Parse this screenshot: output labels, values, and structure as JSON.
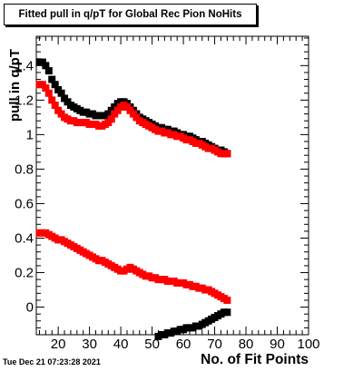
{
  "header": {
    "title": "Fitted pull in q/pT for Global Rec Pion NoHits",
    "timestamp": "Tue Dec 21 07:23:28 2021"
  },
  "chart_data": {
    "type": "scatter",
    "title": "Fitted pull in q/pT for Global Rec Pion NoHits",
    "xlabel": "No. of Fit Points",
    "ylabel": "pull in q/pT",
    "xlim": [
      13,
      100
    ],
    "ylim": [
      -0.16,
      1.57
    ],
    "x_ticks": [
      20,
      30,
      40,
      50,
      60,
      70,
      80,
      90,
      100
    ],
    "x_tick_labels": [
      "20",
      "30",
      "40",
      "50",
      "60",
      "70",
      "80",
      "90",
      "100"
    ],
    "y_ticks": [
      0,
      0.2,
      0.4,
      0.6,
      0.8,
      1.0,
      1.2,
      1.4
    ],
    "y_tick_labels": [
      "0",
      "0.2",
      "0.4",
      "0.6",
      "0.8",
      "1",
      "1.2",
      "1.4"
    ],
    "grid": false,
    "series": [
      {
        "color": "#000000",
        "marker": "square",
        "x": [
          14,
          15,
          16,
          17,
          18,
          19,
          20,
          21,
          22,
          23,
          24,
          25,
          26,
          27,
          28,
          29,
          30,
          31,
          32,
          33,
          34,
          35,
          36,
          37,
          38,
          39,
          40,
          41,
          42,
          43,
          44,
          45,
          46,
          47,
          48,
          49,
          50,
          51,
          52,
          53,
          54,
          55,
          56,
          57,
          58,
          59,
          60,
          61,
          62,
          63,
          64,
          65,
          66,
          67,
          68,
          69,
          70,
          71,
          72,
          73,
          74
        ],
        "y": [
          1.42,
          1.42,
          1.4,
          1.37,
          1.32,
          1.29,
          1.26,
          1.24,
          1.21,
          1.19,
          1.17,
          1.16,
          1.15,
          1.14,
          1.13,
          1.13,
          1.12,
          1.12,
          1.11,
          1.11,
          1.11,
          1.11,
          1.12,
          1.14,
          1.16,
          1.18,
          1.19,
          1.19,
          1.18,
          1.16,
          1.14,
          1.12,
          1.1,
          1.09,
          1.08,
          1.07,
          1.06,
          1.05,
          1.04,
          1.04,
          1.03,
          1.03,
          1.02,
          1.02,
          1.01,
          1.0,
          1.0,
          0.99,
          0.99,
          0.98,
          0.97,
          0.96,
          0.96,
          0.95,
          0.94,
          0.93,
          0.92,
          0.91,
          0.91,
          0.9,
          0.89
        ]
      },
      {
        "color": "#ff0000",
        "marker": "square",
        "x": [
          14,
          15,
          16,
          17,
          18,
          19,
          20,
          21,
          22,
          23,
          24,
          25,
          26,
          27,
          28,
          29,
          30,
          31,
          32,
          33,
          34,
          35,
          36,
          37,
          38,
          39,
          40,
          41,
          42,
          43,
          44,
          45,
          46,
          47,
          48,
          49,
          50,
          51,
          52,
          53,
          54,
          55,
          56,
          57,
          58,
          59,
          60,
          61,
          62,
          63,
          64,
          65,
          66,
          67,
          68,
          69,
          70,
          71,
          72,
          73,
          74
        ],
        "y": [
          1.29,
          1.29,
          1.27,
          1.24,
          1.2,
          1.17,
          1.14,
          1.12,
          1.1,
          1.09,
          1.08,
          1.08,
          1.07,
          1.07,
          1.07,
          1.07,
          1.06,
          1.06,
          1.06,
          1.05,
          1.05,
          1.06,
          1.07,
          1.09,
          1.12,
          1.14,
          1.16,
          1.17,
          1.16,
          1.14,
          1.12,
          1.1,
          1.08,
          1.07,
          1.06,
          1.05,
          1.04,
          1.03,
          1.02,
          1.02,
          1.01,
          1.01,
          1.0,
          1.0,
          0.99,
          0.99,
          0.98,
          0.97,
          0.97,
          0.96,
          0.95,
          0.95,
          0.94,
          0.93,
          0.92,
          0.92,
          0.91,
          0.9,
          0.89,
          0.89,
          0.89
        ]
      },
      {
        "color": "#ff0000",
        "marker": "square",
        "x": [
          14,
          15,
          16,
          17,
          18,
          19,
          20,
          21,
          22,
          23,
          24,
          25,
          26,
          27,
          28,
          29,
          30,
          31,
          32,
          33,
          34,
          35,
          36,
          37,
          38,
          39,
          40,
          41,
          42,
          43,
          44,
          45,
          46,
          47,
          48,
          49,
          50,
          51,
          52,
          53,
          54,
          55,
          56,
          57,
          58,
          59,
          60,
          61,
          62,
          63,
          64,
          65,
          66,
          67,
          68,
          69,
          70,
          71,
          72,
          73,
          74
        ],
        "y": [
          0.43,
          0.43,
          0.43,
          0.42,
          0.41,
          0.4,
          0.39,
          0.39,
          0.38,
          0.37,
          0.36,
          0.35,
          0.34,
          0.33,
          0.32,
          0.31,
          0.3,
          0.29,
          0.28,
          0.27,
          0.27,
          0.26,
          0.25,
          0.24,
          0.23,
          0.22,
          0.21,
          0.21,
          0.22,
          0.23,
          0.22,
          0.21,
          0.2,
          0.19,
          0.18,
          0.18,
          0.17,
          0.17,
          0.16,
          0.16,
          0.16,
          0.15,
          0.15,
          0.15,
          0.14,
          0.14,
          0.14,
          0.13,
          0.13,
          0.12,
          0.12,
          0.11,
          0.11,
          0.1,
          0.1,
          0.09,
          0.08,
          0.07,
          0.06,
          0.05,
          0.04
        ]
      },
      {
        "color": "#000000",
        "marker": "square",
        "x": [
          52,
          53,
          54,
          55,
          56,
          57,
          58,
          59,
          60,
          61,
          62,
          63,
          64,
          65,
          66,
          67,
          68,
          69,
          70,
          71,
          72,
          73,
          74
        ],
        "y": [
          -0.17,
          -0.16,
          -0.16,
          -0.15,
          -0.15,
          -0.14,
          -0.14,
          -0.13,
          -0.13,
          -0.12,
          -0.12,
          -0.12,
          -0.11,
          -0.11,
          -0.1,
          -0.09,
          -0.08,
          -0.07,
          -0.06,
          -0.05,
          -0.04,
          -0.03,
          -0.03
        ]
      }
    ]
  }
}
